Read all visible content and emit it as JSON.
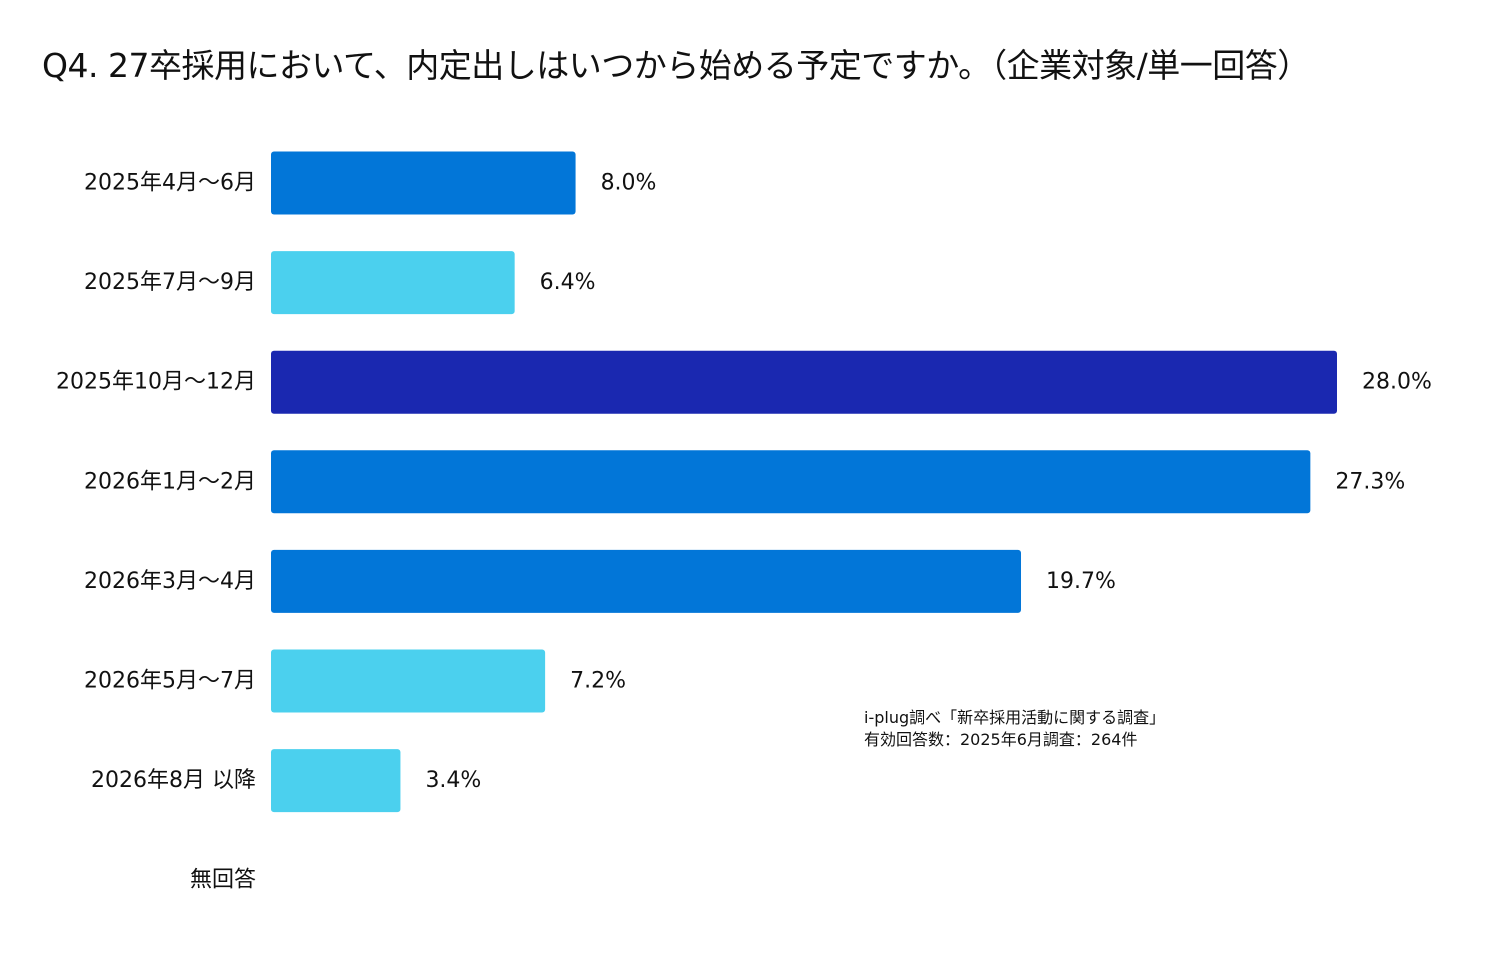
{
  "chart_data": {
    "type": "bar",
    "orientation": "horizontal",
    "title": "Q4. 27卒採用において、内定出しはいつから始める予定ですか。（企業対象/単一回答）",
    "categories": [
      "2025年4月～6月",
      "2025年7月～9月",
      "2025年10月～12月",
      "2026年1月～2月",
      "2026年3月～4月",
      "2026年5月～7月",
      "2026年8月 以降",
      "無回答"
    ],
    "values": [
      8.0,
      6.4,
      28.0,
      27.3,
      19.7,
      7.2,
      3.4,
      null
    ],
    "value_labels": [
      "8.0%",
      "6.4%",
      "28.0%",
      "27.3%",
      "19.7%",
      "7.2%",
      "3.4%",
      ""
    ],
    "bar_colors": [
      "#0276d8",
      "#4bd0ee",
      "#1a28b0",
      "#0276d8",
      "#0276d8",
      "#4bd0ee",
      "#4bd0ee",
      "#4bd0ee"
    ],
    "unit": "%",
    "xlim": [
      0,
      28.0
    ],
    "xlabel": "",
    "ylabel": "",
    "grid": false,
    "legend": "none"
  },
  "note": {
    "line1": "i-plug調べ「新卒採用活動に関する調査」",
    "line2": "有効回答数：2025年6月調査：264件"
  }
}
